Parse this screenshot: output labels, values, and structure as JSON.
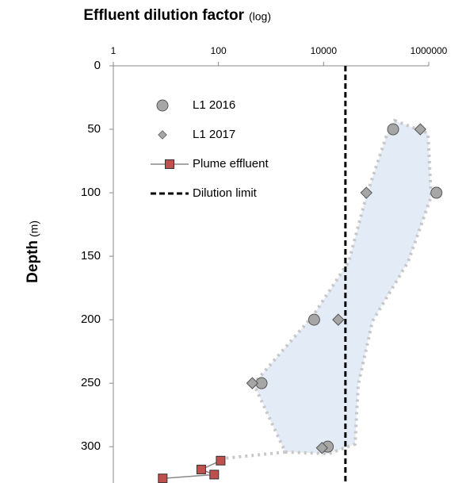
{
  "chart_data": {
    "type": "scatter",
    "title": "Effluent dilution factor",
    "title_note": "(log)",
    "ylabel": "Depth",
    "ylabel_note": "(m)",
    "xlog": true,
    "xlim": [
      1,
      1000000
    ],
    "xticks": [
      1,
      100,
      10000,
      1000000
    ],
    "ylim": [
      0,
      328
    ],
    "yticks": [
      0,
      50,
      100,
      150,
      200,
      250,
      300
    ],
    "y_inverted": true,
    "series": [
      {
        "name": "L1 2016",
        "marker": "circle",
        "color": "#a6a6a6",
        "x": [
          210000,
          1400000,
          6600,
          660,
          12000
        ],
        "values": [
          50,
          100,
          200,
          250,
          300
        ]
      },
      {
        "name": "L1 2017",
        "marker": "diamond",
        "color": "#a6a6a6",
        "x": [
          690000,
          65000,
          19000,
          440,
          9300
        ],
        "values": [
          50,
          100,
          200,
          250,
          301
        ]
      },
      {
        "name": "Plume effluent",
        "marker": "square",
        "color": "#c0504d",
        "line": true,
        "x": [
          110,
          47,
          83,
          8.7
        ],
        "values": [
          311,
          318,
          322,
          325
        ]
      },
      {
        "name": "Dilution limit",
        "marker": "vline",
        "color": "#000000",
        "x": [
          26000
        ]
      }
    ]
  }
}
